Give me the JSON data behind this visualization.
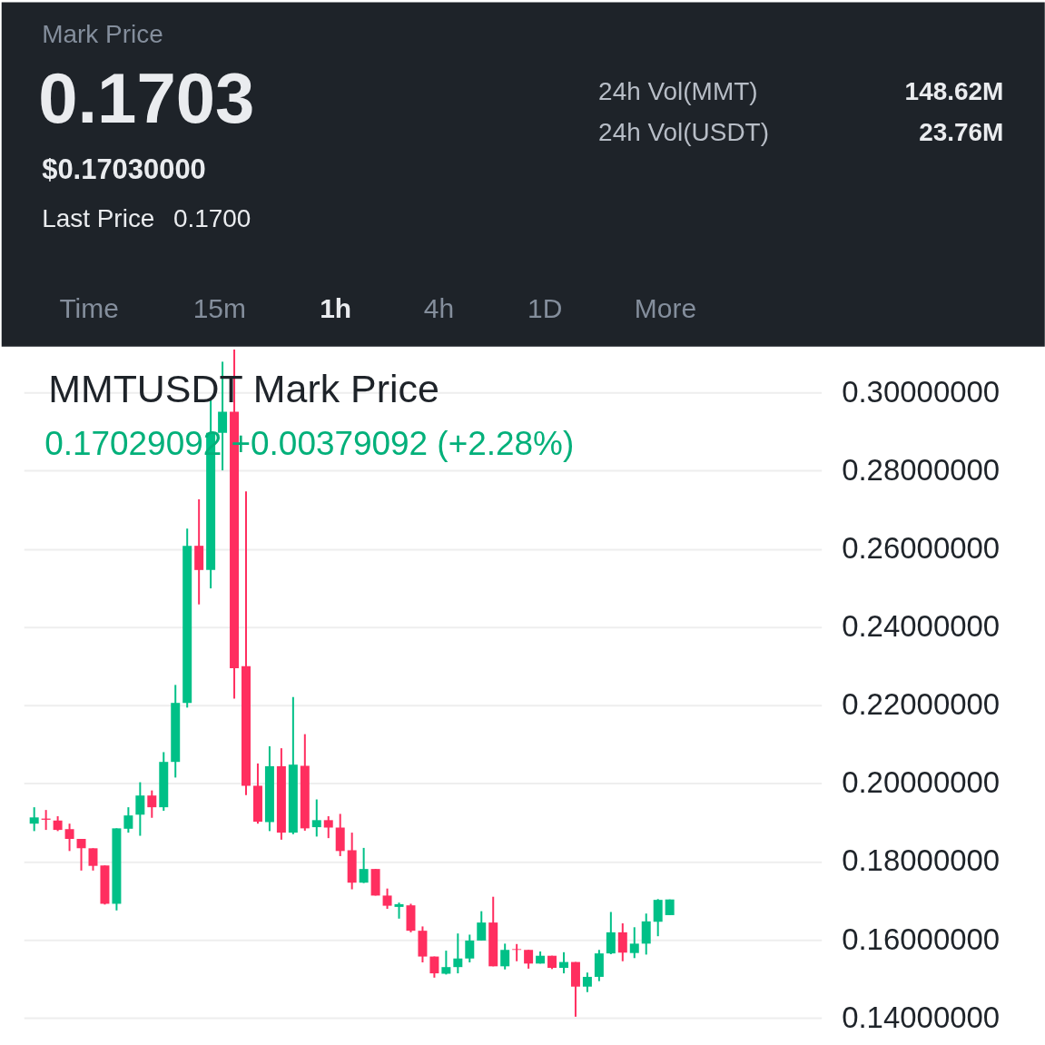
{
  "chart_data": [
    {
      "type": "other",
      "annotations": [
        "Mark Price",
        "0.1703",
        "$0.17030000",
        "Last Price",
        "0.1700",
        "24h Vol(MMT)",
        "148.62M",
        "24h Vol(USDT)",
        "23.76M",
        "Time",
        "15m",
        "1h",
        "4h",
        "1D",
        "More"
      ]
    },
    {
      "type": "candlestick",
      "title": "MMTUSDT Mark Price",
      "subtitle": "0.17029092 +0.00379092 (+2.28%)",
      "categories": [
        null,
        null,
        null,
        null,
        null,
        null,
        null,
        null,
        null,
        null,
        null,
        null,
        null,
        null,
        null,
        null,
        null,
        null,
        null,
        null,
        null,
        null,
        null,
        null,
        null,
        null,
        null,
        null,
        null,
        null,
        null,
        null,
        null,
        null,
        null,
        null,
        null,
        null,
        null,
        null,
        null,
        null,
        null,
        null,
        null,
        null,
        null,
        null,
        null,
        null,
        null,
        null,
        null,
        null,
        null,
        null,
        null,
        null,
        null,
        null,
        null,
        null,
        null,
        null,
        null,
        null,
        null
      ],
      "ohlc": [
        [
          0.1897,
          0.1939,
          0.1878,
          0.1913
        ],
        [
          0.191,
          0.1932,
          0.1881,
          0.1907
        ],
        [
          0.1905,
          0.1916,
          0.1878,
          0.1881
        ],
        [
          0.1883,
          0.1897,
          0.1827,
          0.1858
        ],
        [
          0.1858,
          0.1858,
          0.1777,
          0.1834
        ],
        [
          0.1834,
          0.1834,
          0.1777,
          0.1789
        ],
        [
          0.179,
          0.179,
          0.169,
          0.1692
        ],
        [
          0.1692,
          0.1885,
          0.1675,
          0.1885
        ],
        [
          0.1884,
          0.1939,
          0.1874,
          0.1918
        ],
        [
          0.192,
          0.2003,
          0.1866,
          0.1969
        ],
        [
          0.1969,
          0.1982,
          0.1912,
          0.1939
        ],
        [
          0.1939,
          0.208,
          0.193,
          0.2055
        ],
        [
          0.2055,
          0.2252,
          0.2015,
          0.2206
        ],
        [
          0.2206,
          0.2652,
          0.2194,
          0.2608
        ],
        [
          0.2608,
          0.2727,
          0.2458,
          0.2546
        ],
        [
          0.2546,
          0.2982,
          0.2499,
          0.2897
        ],
        [
          0.2897,
          0.3079,
          0.2801,
          0.2951
        ],
        [
          0.2951,
          0.311,
          0.2217,
          0.2295
        ],
        [
          0.23,
          0.2747,
          0.197,
          0.1994
        ],
        [
          0.1994,
          0.2051,
          0.1897,
          0.1902
        ],
        [
          0.1901,
          0.2095,
          0.1878,
          0.2044
        ],
        [
          0.2044,
          0.209,
          0.1856,
          0.1874
        ],
        [
          0.1874,
          0.2221,
          0.187,
          0.2048
        ],
        [
          0.2045,
          0.2126,
          0.1879,
          0.1885
        ],
        [
          0.1888,
          0.1959,
          0.1864,
          0.1906
        ],
        [
          0.1906,
          0.1916,
          0.186,
          0.1887
        ],
        [
          0.1887,
          0.1922,
          0.1814,
          0.1827
        ],
        [
          0.1829,
          0.1874,
          0.1729,
          0.1746
        ],
        [
          0.1746,
          0.1835,
          0.1745,
          0.1781
        ],
        [
          0.1781,
          0.1781,
          0.1713,
          0.1713
        ],
        [
          0.1713,
          0.1731,
          0.1679,
          0.1687
        ],
        [
          0.1684,
          0.1695,
          0.1654,
          0.1691
        ],
        [
          0.1688,
          0.1692,
          0.1619,
          0.1623
        ],
        [
          0.1623,
          0.1634,
          0.1542,
          0.1557
        ],
        [
          0.1557,
          0.1557,
          0.1503,
          0.1514
        ],
        [
          0.1513,
          0.1572,
          0.1511,
          0.153
        ],
        [
          0.153,
          0.1616,
          0.1514,
          0.1552
        ],
        [
          0.1552,
          0.1613,
          0.1542,
          0.1598
        ],
        [
          0.1598,
          0.1673,
          0.1598,
          0.1644
        ],
        [
          0.1644,
          0.171,
          0.1532,
          0.1532
        ],
        [
          0.1532,
          0.159,
          0.1524,
          0.1574
        ],
        [
          0.1576,
          0.1589,
          0.1545,
          0.1574
        ],
        [
          0.1574,
          0.1574,
          0.1526,
          0.1539
        ],
        [
          0.1539,
          0.157,
          0.1539,
          0.1559
        ],
        [
          0.1559,
          0.1559,
          0.1525,
          0.1528
        ],
        [
          0.1528,
          0.1568,
          0.1514,
          0.1543
        ],
        [
          0.1543,
          0.1543,
          0.1403,
          0.148
        ],
        [
          0.148,
          0.1516,
          0.1466,
          0.1505
        ],
        [
          0.1505,
          0.1574,
          0.1494,
          0.1565
        ],
        [
          0.1565,
          0.1671,
          0.1563,
          0.1619
        ],
        [
          0.1619,
          0.1642,
          0.1545,
          0.1567
        ],
        [
          0.1566,
          0.1632,
          0.1553,
          0.159
        ],
        [
          0.159,
          0.1667,
          0.1562,
          0.1647
        ],
        [
          0.1646,
          0.1704,
          0.1609,
          0.1702
        ],
        [
          0.1663,
          0.1703,
          0.1663,
          0.1703
        ],
        null,
        null,
        null,
        null,
        null,
        null,
        null,
        null,
        null,
        null,
        null,
        null
      ],
      "colors": [
        "#00c087",
        "#ff2e5f",
        "#ff2e5f",
        "#ff2e5f",
        "#ff2e5f",
        "#ff2e5f",
        "#ff2e5f",
        "#00c087",
        "#00c087",
        "#00c087",
        "#ff2e5f",
        "#00c087",
        "#00c087",
        "#00c087",
        "#ff2e5f",
        "#00c087",
        "#00c087",
        "#ff2e5f",
        "#ff2e5f",
        "#ff2e5f",
        "#00c087",
        "#ff2e5f",
        "#00c087",
        "#ff2e5f",
        "#00c087",
        "#ff2e5f",
        "#ff2e5f",
        "#ff2e5f",
        "#00c087",
        "#ff2e5f",
        "#ff2e5f",
        "#00c087",
        "#ff2e5f",
        "#ff2e5f",
        "#ff2e5f",
        "#00c087",
        "#00c087",
        "#00c087",
        "#00c087",
        "#ff2e5f",
        "#00c087",
        "#ff2e5f",
        "#ff2e5f",
        "#00c087",
        "#ff2e5f",
        "#00c087",
        "#ff2e5f",
        "#00c087",
        "#00c087",
        "#00c087",
        "#ff2e5f",
        "#00c087",
        "#00c087",
        "#00c087",
        "#00c087",
        null,
        null,
        null,
        null,
        null,
        null,
        null,
        null,
        null,
        null,
        null,
        null
      ],
      "ylim": [
        0.1326,
        0.3114
      ],
      "yticks": [
        {
          "value": 0.14,
          "label": "0.14000000"
        },
        {
          "value": 0.16,
          "label": "0.16000000"
        },
        {
          "value": 0.18,
          "label": "0.18000000"
        },
        {
          "value": 0.2,
          "label": "0.20000000"
        },
        {
          "value": 0.22,
          "label": "0.22000000"
        },
        {
          "value": 0.24,
          "label": "0.24000000"
        },
        {
          "value": 0.26,
          "label": "0.26000000"
        },
        {
          "value": 0.28,
          "label": "0.28000000"
        },
        {
          "value": 0.3,
          "label": "0.30000000"
        }
      ],
      "grid": "y",
      "tick_labels": "y"
    }
  ]
}
